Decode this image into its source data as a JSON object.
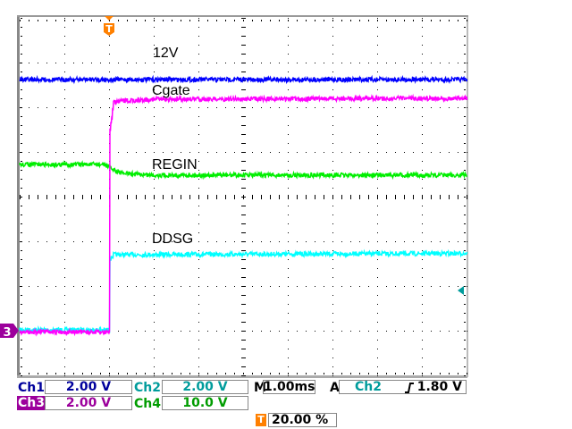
{
  "chart_data": {
    "type": "line",
    "title": "",
    "xlabel": "",
    "ylabel": "",
    "x_units": "ms",
    "xlim": [
      -2,
      8
    ],
    "ylim_divisions": [
      -4,
      4
    ],
    "grid": true,
    "trigger_position_percent": 20,
    "series": [
      {
        "name": "12V",
        "channel": "Ch1",
        "color": "#0000ff",
        "x": [
          -2,
          8
        ],
        "y_div": [
          2.62,
          2.62
        ]
      },
      {
        "name": "Cgate",
        "channel": "Ch3",
        "color": "#ff00ff",
        "x": [
          -2,
          0,
          0.02,
          0.1,
          0.3,
          1,
          8
        ],
        "y_div": [
          -3.03,
          -3.03,
          1.5,
          2.1,
          2.14,
          2.18,
          2.2
        ]
      },
      {
        "name": "REGIN",
        "channel": "Ch4",
        "color": "#00ee00",
        "x": [
          -2,
          -0.1,
          0.1,
          0.3,
          1,
          8
        ],
        "y_div": [
          0.72,
          0.72,
          0.6,
          0.52,
          0.48,
          0.48
        ]
      },
      {
        "name": "DDSG",
        "channel": "Ch2",
        "color": "#00ffff",
        "x": [
          -2,
          0,
          0.02,
          0.1,
          8
        ],
        "y_div": [
          -2.98,
          -2.98,
          -1.4,
          -1.3,
          -1.27
        ]
      }
    ],
    "markers": {
      "ch3_ground_label": "3",
      "ch3_ground_div": -3,
      "trigger_level_div": -2.1,
      "trigger_marker_label": "T"
    }
  },
  "readouts": {
    "ch1": {
      "label": "Ch1",
      "value": "2.00 V",
      "color": "#00009c"
    },
    "ch2": {
      "label": "Ch2",
      "value": "2.00 V",
      "color": "#009c9c"
    },
    "ch3": {
      "label": "Ch3",
      "value": "2.00 V",
      "color": "#9c009c"
    },
    "ch4": {
      "label": "Ch4",
      "value": "10.0 V",
      "color": "#009c00"
    },
    "timebase": {
      "label": "M",
      "value": "1.00ms"
    },
    "trigger": {
      "label": "A",
      "source": "Ch2",
      "slope": "rising-edge-icon",
      "level": "1.80 V"
    },
    "trigger_pos": {
      "icon": "T",
      "value": "20.00 %"
    }
  }
}
